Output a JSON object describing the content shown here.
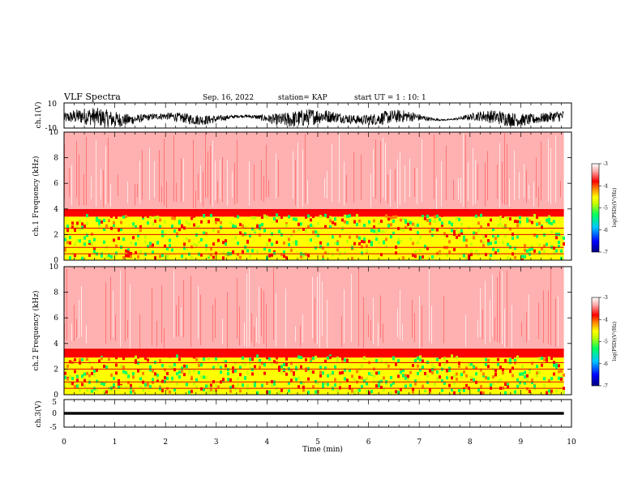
{
  "header": {
    "title": "VLF Spectra",
    "date": "Sep. 16, 2022",
    "station": "station= KAP",
    "start_ut": "start  UT =   1 : 10: 1"
  },
  "colors": {
    "spectrum_scale": [
      "#000080",
      "#0000ff",
      "#00c8ff",
      "#00ff60",
      "#c8ff00",
      "#ffff00",
      "#ff8000",
      "#ff0000",
      "#ffb0b0",
      "#ffffff"
    ],
    "trace": "#000000"
  },
  "chart_data": [
    {
      "type": "line",
      "panel": "ch1-waveform",
      "ylabel": "ch.1(V)",
      "ylim": [
        -10,
        10
      ],
      "yticks": [
        "10",
        "-10"
      ],
      "x_range_min": [
        0,
        9.85
      ],
      "description_values": "broadband noise envelope roughly between -8 and +8 V"
    },
    {
      "type": "heatmap",
      "panel": "ch1-spectrogram",
      "ylabel": "ch.1 Frequency  (kHz)",
      "ylim": [
        0,
        10
      ],
      "yticks": [
        "0",
        "2",
        "4",
        "6",
        "8",
        "10"
      ],
      "colorbar": {
        "label": "log(PSD)(V²/Hz)",
        "range": [
          -7,
          -3
        ],
        "ticks": [
          "-3",
          "-4",
          "-5",
          "-6",
          "-7"
        ]
      },
      "bands_khz": [
        {
          "from": 0,
          "to": 3.4,
          "level": -4.6
        },
        {
          "from": 3.4,
          "to": 4.0,
          "level": -4.1
        },
        {
          "from": 4.0,
          "to": 10,
          "level": -3.4
        }
      ]
    },
    {
      "type": "heatmap",
      "panel": "ch2-spectrogram",
      "ylabel": "ch.2 Frequency  (kHz)",
      "ylim": [
        0,
        10
      ],
      "yticks": [
        "0",
        "2",
        "4",
        "6",
        "8",
        "10"
      ],
      "colorbar": {
        "label": "log(PSD)(V²/Hz)",
        "range": [
          -7,
          -3
        ],
        "ticks": [
          "-3",
          "-4",
          "-5",
          "-6",
          "-7"
        ]
      },
      "bands_khz": [
        {
          "from": 0,
          "to": 2.9,
          "level": -4.8
        },
        {
          "from": 2.9,
          "to": 3.6,
          "level": -4.1
        },
        {
          "from": 3.6,
          "to": 10,
          "level": -3.4
        }
      ]
    },
    {
      "type": "line",
      "panel": "ch3-waveform",
      "ylabel": "ch.3(V)",
      "ylim": [
        -5,
        5
      ],
      "yticks": [
        "5",
        "0",
        "-5"
      ],
      "xlabel": "Time  (min)",
      "xlim": [
        0,
        10
      ],
      "xticks": [
        "0",
        "1",
        "2",
        "3",
        "4",
        "5",
        "6",
        "7",
        "8",
        "9",
        "10"
      ],
      "x_range_min": [
        0,
        9.85
      ],
      "band_v": [
        -0.5,
        0.5
      ]
    }
  ]
}
